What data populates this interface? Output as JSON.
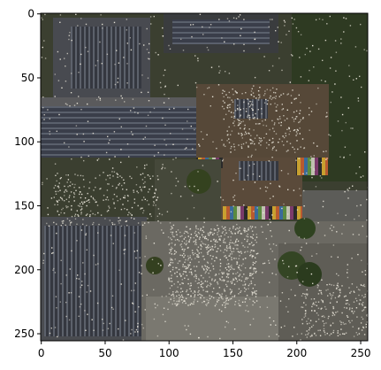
{
  "chart_data": {
    "type": "heatmap",
    "title": "",
    "xlabel": "",
    "ylabel": "",
    "xlim": [
      0,
      256
    ],
    "ylim": [
      256,
      0
    ],
    "x_ticks": [
      0,
      50,
      100,
      150,
      200,
      250
    ],
    "y_ticks": [
      0,
      50,
      100,
      150,
      200,
      250
    ],
    "grid": false,
    "legend": "none",
    "content": "aerial-photo"
  },
  "colors": {
    "vegetation": "#2f3a22",
    "roof_dark": "#2c2c2e",
    "roof_brown": "#5a4a38",
    "pavement": "#6f6c66",
    "solar_panel": "#3a3e4a",
    "noise": "#e8e4d8"
  }
}
